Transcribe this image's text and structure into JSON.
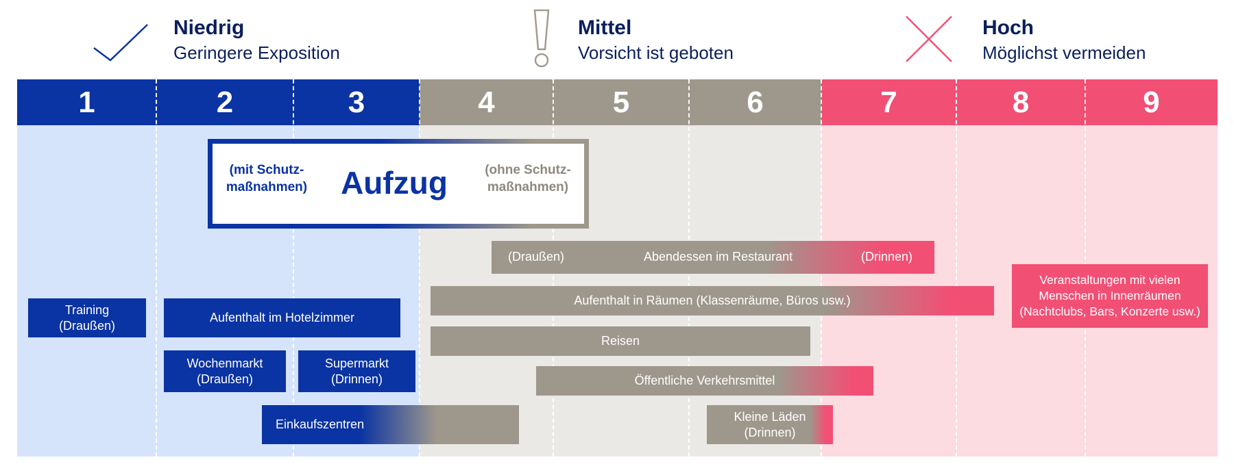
{
  "colors": {
    "low": "#0a33a3",
    "medium": "#9e978c",
    "high": "#f24f75",
    "low_bg": "#d6e4fb",
    "medium_bg": "#ebe9e6",
    "high_bg": "#fcdbe1"
  },
  "legend": {
    "low": {
      "icon": "checkmark-icon",
      "title": "Niedrig",
      "subtitle": "Geringere Exposition"
    },
    "medium": {
      "icon": "exclamation-icon",
      "title": "Mittel",
      "subtitle": "Vorsicht ist geboten"
    },
    "high": {
      "icon": "cross-icon",
      "title": "Hoch",
      "subtitle": "Möglichst vermeiden"
    }
  },
  "scale": [
    "1",
    "2",
    "3",
    "4",
    "5",
    "6",
    "7",
    "8",
    "9"
  ],
  "elevator": {
    "left": "(mit Schutz-\nmaßnahmen)",
    "title": "Aufzug",
    "right": "(ohne Schutz-\nmaßnahmen)"
  },
  "activities": {
    "training": "Training\n(Draußen)",
    "hotel": "Aufenthalt im Hotelzimmer",
    "wochenmarkt": "Wochenmarkt\n(Draußen)",
    "supermarkt": "Supermarkt\n(Drinnen)",
    "einkaufszentren": "Einkaufszentren",
    "restaurant": {
      "left": "(Draußen)",
      "title": "Abendessen im Restaurant",
      "right": "(Drinnen)"
    },
    "raeume": "Aufenthalt in Räumen (Klassenräume, Büros usw.)",
    "reisen": "Reisen",
    "verkehr": "Öffentliche Verkehrsmittel",
    "laeden": "Kleine Läden\n(Drinnen)",
    "veranstaltungen": "Veranstaltungen mit vielen\nMenschen in Innenräumen\n(Nachtclubs, Bars, Konzerte usw.)"
  }
}
